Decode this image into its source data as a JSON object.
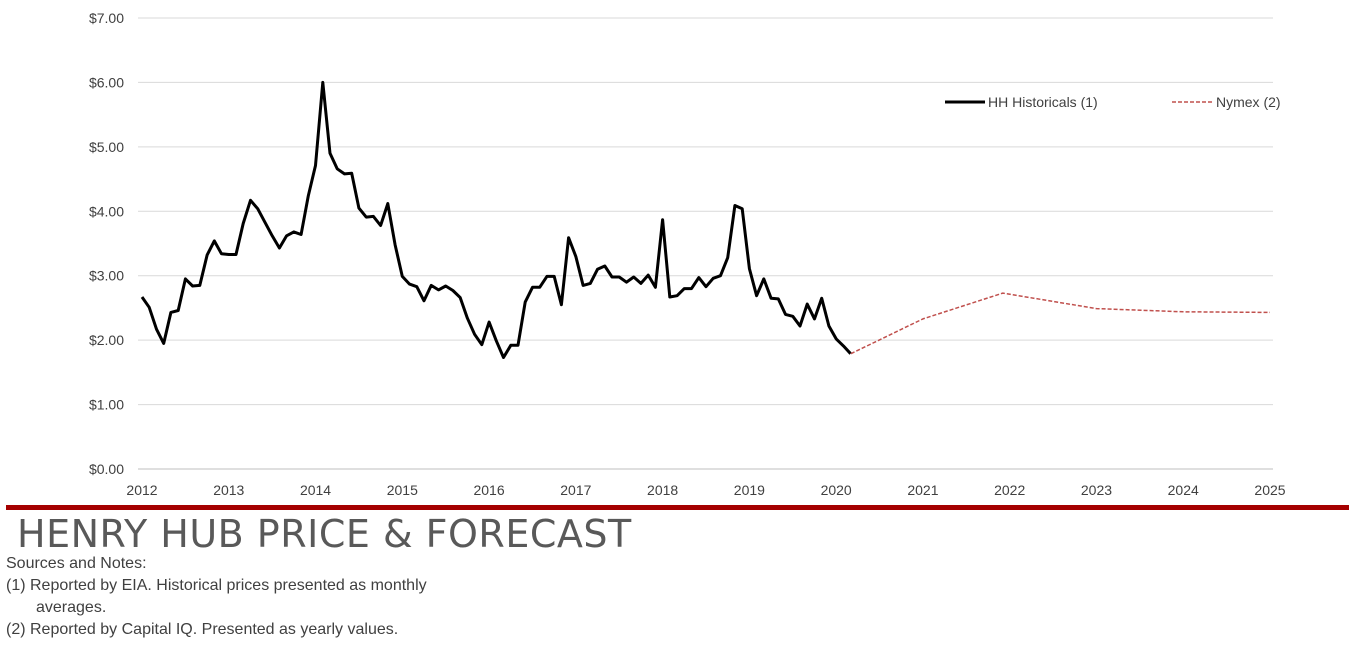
{
  "chart_data": {
    "type": "line",
    "y_ticks": [
      "$0.00",
      "$1.00",
      "$2.00",
      "$3.00",
      "$4.00",
      "$5.00",
      "$6.00",
      "$7.00"
    ],
    "ylim": [
      0,
      7
    ],
    "x_ticks": [
      "2012",
      "2013",
      "2014",
      "2015",
      "2016",
      "2017",
      "2018",
      "2019",
      "2020",
      "2021",
      "2022",
      "2023",
      "2024",
      "2025"
    ],
    "xlim": [
      2012,
      2025
    ],
    "grid": "horizontal",
    "legend_placement": "top-right",
    "series": [
      {
        "name": "HH Historicals (1)",
        "color": "#000000",
        "style": "solid",
        "start_year": 2012,
        "step": "monthly",
        "values": [
          2.67,
          2.51,
          2.17,
          1.95,
          2.43,
          2.46,
          2.95,
          2.84,
          2.85,
          3.32,
          3.54,
          3.34,
          3.33,
          3.33,
          3.81,
          4.17,
          4.04,
          3.83,
          3.62,
          3.43,
          3.62,
          3.68,
          3.64,
          4.24,
          4.71,
          6.0,
          4.9,
          4.66,
          4.58,
          4.59,
          4.05,
          3.91,
          3.92,
          3.78,
          4.12,
          3.48,
          2.99,
          2.87,
          2.83,
          2.61,
          2.85,
          2.78,
          2.84,
          2.77,
          2.66,
          2.34,
          2.09,
          1.93,
          2.28,
          1.99,
          1.73,
          1.92,
          1.92,
          2.59,
          2.82,
          2.82,
          2.99,
          2.99,
          2.55,
          3.59,
          3.3,
          2.85,
          2.88,
          3.1,
          3.15,
          2.98,
          2.98,
          2.9,
          2.98,
          2.88,
          3.01,
          2.82,
          3.87,
          2.67,
          2.69,
          2.8,
          2.8,
          2.97,
          2.83,
          2.96,
          3.0,
          3.28,
          4.09,
          4.04,
          3.11,
          2.69,
          2.95,
          2.65,
          2.64,
          2.4,
          2.37,
          2.22,
          2.56,
          2.33,
          2.65,
          2.22,
          2.02,
          1.91,
          1.79
        ]
      },
      {
        "name": "Nymex (2)",
        "color": "#c0504d",
        "style": "dashed",
        "x": [
          2020.17,
          2021.0,
          2021.92,
          2023.0,
          2024.0,
          2025.0
        ],
        "values": [
          1.79,
          2.33,
          2.73,
          2.49,
          2.44,
          2.43
        ]
      }
    ]
  },
  "footer": {
    "title": "HENRY HUB PRICE & FORECAST",
    "notes_heading": "Sources and Notes:",
    "note1_line1": "(1)  Reported by EIA. Historical prices presented as monthly",
    "note1_line2": "averages.",
    "note2": "(2) Reported by Capital IQ.  Presented as yearly values."
  },
  "colors": {
    "divider": "#a50000",
    "grid": "#d9d9d9",
    "text": "#404040",
    "title": "#595959"
  }
}
